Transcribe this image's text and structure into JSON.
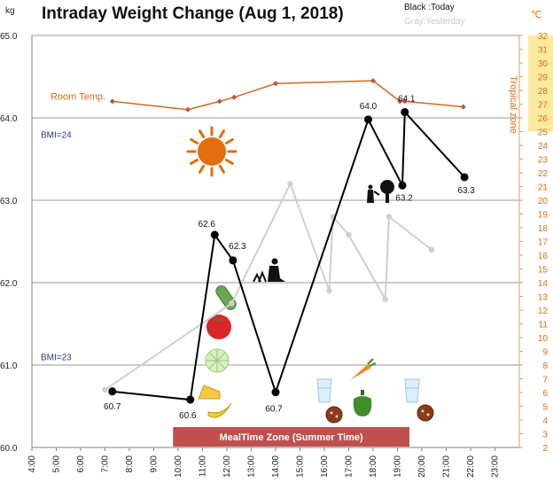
{
  "chart_data": {
    "type": "line",
    "title": "Intraday Weight Change (Aug 1, 2018)",
    "left_axis": {
      "unit": "kg",
      "ylim": [
        60.0,
        65.0
      ],
      "ticks": [
        "60.0",
        "61.0",
        "62.0",
        "63.0",
        "64.0",
        "65.0"
      ]
    },
    "right_axis": {
      "unit": "℃",
      "title": "Tropical zone",
      "ylim": [
        2,
        32
      ],
      "tropical_from": 25,
      "ticks": [
        "2",
        "3",
        "4",
        "5",
        "6",
        "7",
        "8",
        "9",
        "10",
        "11",
        "12",
        "13",
        "14",
        "15",
        "16",
        "17",
        "18",
        "19",
        "20",
        "21",
        "22",
        "23",
        "24",
        "25",
        "26",
        "27",
        "28",
        "29",
        "30",
        "31",
        "32"
      ]
    },
    "x_axis": {
      "ticks": [
        "4:00",
        "5:00",
        "6:00",
        "7:00",
        "8:00",
        "9:00",
        "10:00",
        "11:00",
        "12:00",
        "13:00",
        "14:00",
        "15:00",
        "16:00",
        "17:00",
        "18:00",
        "19:00",
        "20:00",
        "21:00",
        "22:00",
        "23:00"
      ]
    },
    "legend": {
      "today": "Black :Today",
      "yesterday": "Gray:Yesterday"
    },
    "reference_lines": [
      {
        "label": "BMI=24",
        "value": 63.8
      },
      {
        "label": "BMI=23",
        "value": 61.1
      }
    ],
    "meal_zone": {
      "label": "MealTime Zone (Summer Time)",
      "start": 9.5,
      "end": 18.8
    },
    "series": [
      {
        "name": "Black :Today",
        "color": "#000000",
        "points": [
          {
            "x": 7.3,
            "y": 60.68,
            "label": "60.7"
          },
          {
            "x": 10.5,
            "y": 60.58,
            "label": "60.6"
          },
          {
            "x": 11.5,
            "y": 62.58,
            "label": "62.6"
          },
          {
            "x": 12.25,
            "y": 62.27,
            "label": "62.3"
          },
          {
            "x": 14.0,
            "y": 60.67,
            "label": "60.7"
          },
          {
            "x": 17.8,
            "y": 63.98,
            "label": "64.0"
          },
          {
            "x": 19.2,
            "y": 63.18,
            "label": "63.2"
          },
          {
            "x": 19.3,
            "y": 64.07,
            "label": "64.1"
          },
          {
            "x": 21.75,
            "y": 63.28,
            "label": "63.3"
          }
        ]
      },
      {
        "name": "Gray:Yesterday",
        "color": "#cfcfcf",
        "points": [
          {
            "x": 7.0,
            "y": 60.7
          },
          {
            "x": 12.2,
            "y": 61.75
          },
          {
            "x": 14.6,
            "y": 63.2
          },
          {
            "x": 16.2,
            "y": 61.9
          },
          {
            "x": 16.35,
            "y": 62.8
          },
          {
            "x": 17.0,
            "y": 62.58
          },
          {
            "x": 18.5,
            "y": 61.8
          },
          {
            "x": 18.65,
            "y": 62.8
          },
          {
            "x": 20.4,
            "y": 62.4
          }
        ]
      },
      {
        "name": "Room Temp.",
        "axis": "right",
        "color": "#d2691e",
        "points": [
          {
            "x": 7.3,
            "y": 27.2
          },
          {
            "x": 10.4,
            "y": 26.6
          },
          {
            "x": 11.7,
            "y": 27.2
          },
          {
            "x": 12.3,
            "y": 27.5
          },
          {
            "x": 14.0,
            "y": 28.5
          },
          {
            "x": 18.0,
            "y": 28.7
          },
          {
            "x": 19.1,
            "y": 27.2
          },
          {
            "x": 19.3,
            "y": 27.2
          },
          {
            "x": 21.7,
            "y": 26.8
          }
        ]
      }
    ],
    "icons": [
      "sun-icon",
      "gardening-icon",
      "tree-watering-icon",
      "cucumber-icon",
      "tomato-icon",
      "melon-icon",
      "cheese-icon",
      "banana-icon",
      "water-glass-icon",
      "carrot-icon",
      "pepper-icon",
      "cookie-icon"
    ]
  }
}
